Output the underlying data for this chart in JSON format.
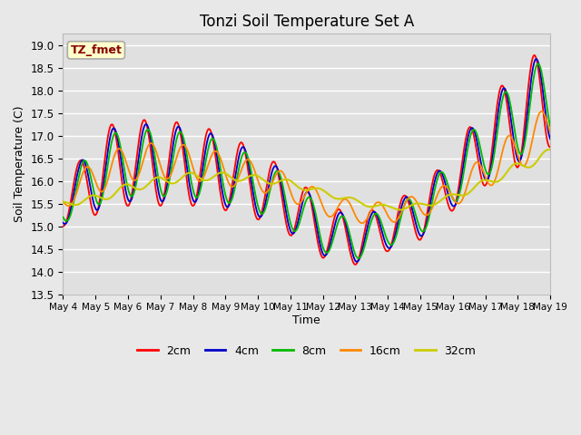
{
  "title": "Tonzi Soil Temperature Set A",
  "xlabel": "Time",
  "ylabel": "Soil Temperature (C)",
  "ylim": [
    13.5,
    19.25
  ],
  "annotation_text": "TZ_fmet",
  "annotation_bg": "#ffffcc",
  "annotation_border": "#aaaaaa",
  "annotation_fg": "#880000",
  "fig_bg": "#e8e8e8",
  "plot_bg": "#e0e0e0",
  "grid_color": "#ffffff",
  "line_colors": {
    "2cm": "#ff0000",
    "4cm": "#0000cc",
    "8cm": "#00bb00",
    "16cm": "#ff8800",
    "32cm": "#cccc00"
  },
  "xtick_labels": [
    "May 4",
    "May 5",
    "May 6",
    "May 7",
    "May 8",
    "May 9",
    "May 10",
    "May 11",
    "May 12",
    "May 13",
    "May 14",
    "May 15",
    "May 16",
    "May 17",
    "May 18",
    "May 19"
  ],
  "ytick_vals": [
    13.5,
    14.0,
    14.5,
    15.0,
    15.5,
    16.0,
    16.5,
    17.0,
    17.5,
    18.0,
    18.5,
    19.0
  ],
  "num_points": 720,
  "days": 15
}
